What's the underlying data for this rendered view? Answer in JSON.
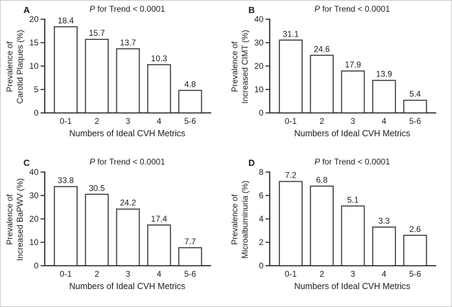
{
  "figure": {
    "background": "#ffffff",
    "line_color": "#3a3a3a",
    "text_color": "#1c1c1c",
    "bar_fill": "#ffffff",
    "border_color": "#c9c9c9"
  },
  "chart_data": [
    {
      "type": "bar",
      "panel": "A",
      "title_italic": "P",
      "title_rest": " for Trend < 0.0001",
      "title_full": "P for Trend < 0.0001",
      "ylabel_line1": "Prevalence of",
      "ylabel_line2": "Carotid Plaques (%)",
      "xlabel": "Numbers of Ideal CVH Metrics",
      "categories": [
        "0-1",
        "2",
        "3",
        "4",
        "5-6"
      ],
      "values": [
        18.4,
        15.7,
        13.7,
        10.3,
        4.8
      ],
      "value_labels": [
        "18.4",
        "15.7",
        "13.7",
        "10.3",
        "4.8"
      ],
      "ylim": [
        0,
        20
      ],
      "yticks": [
        0,
        5,
        10,
        15,
        20
      ],
      "legend": "none",
      "grid": "off"
    },
    {
      "type": "bar",
      "panel": "B",
      "title_italic": "P",
      "title_rest": " for Trend < 0.0001",
      "title_full": "P for Trend < 0.0001",
      "ylabel_line1": "Prevalence of",
      "ylabel_line2": "Increased CIMT (%)",
      "xlabel": "Numbers of Ideal CVH Metrics",
      "categories": [
        "0-1",
        "2",
        "3",
        "4",
        "5-6"
      ],
      "values": [
        31.1,
        24.6,
        17.9,
        13.9,
        5.4
      ],
      "value_labels": [
        "31.1",
        "24.6",
        "17.9",
        "13.9",
        "5.4"
      ],
      "ylim": [
        0,
        40
      ],
      "yticks": [
        0,
        10,
        20,
        30,
        40
      ],
      "legend": "none",
      "grid": "off"
    },
    {
      "type": "bar",
      "panel": "C",
      "title_italic": "P",
      "title_rest": " for Trend < 0.0001",
      "title_full": "P for Trend < 0.0001",
      "ylabel_line1": "Prevalence of",
      "ylabel_line2": "Increased BaPWV (%)",
      "xlabel": "Numbers of Ideal CVH Metrics",
      "categories": [
        "0-1",
        "2",
        "3",
        "4",
        "5-6"
      ],
      "values": [
        33.8,
        30.5,
        24.2,
        17.4,
        7.7
      ],
      "value_labels": [
        "33.8",
        "30.5",
        "24.2",
        "17.4",
        "7.7"
      ],
      "ylim": [
        0,
        40
      ],
      "yticks": [
        0,
        10,
        20,
        30,
        40
      ],
      "legend": "none",
      "grid": "off"
    },
    {
      "type": "bar",
      "panel": "D",
      "title_italic": "P",
      "title_rest": " for Trend < 0.0001",
      "title_full": "P for Trend < 0.0001",
      "ylabel_line1": "Prevalence of",
      "ylabel_line2": "Microalbuminuria (%)",
      "xlabel": "Numbers of Ideal CVH Metrics",
      "categories": [
        "0-1",
        "2",
        "3",
        "4",
        "5-6"
      ],
      "values": [
        7.2,
        6.8,
        5.1,
        3.3,
        2.6
      ],
      "value_labels": [
        "7.2",
        "6.8",
        "5.1",
        "3.3",
        "2.6"
      ],
      "ylim": [
        0,
        8
      ],
      "yticks": [
        0,
        2,
        4,
        6,
        8
      ],
      "legend": "none",
      "grid": "off"
    }
  ]
}
